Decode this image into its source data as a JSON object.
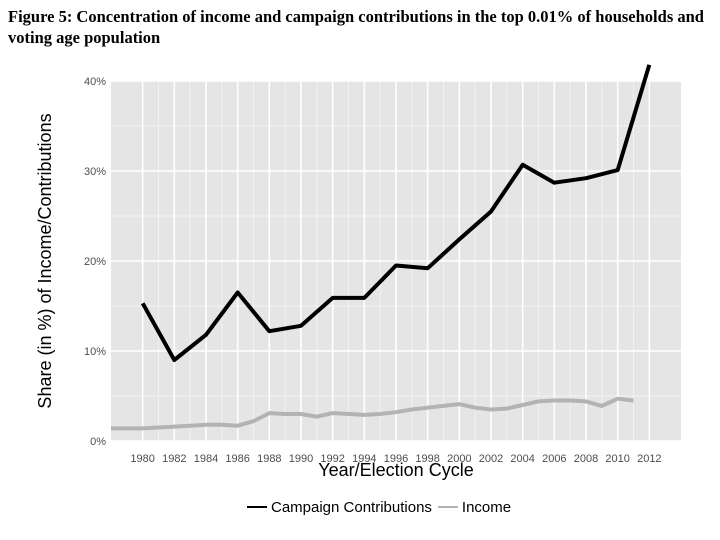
{
  "caption": "Figure 5:  Concentration of income and campaign contributions in the top 0.01% of households and voting age population",
  "chart_data": {
    "type": "line",
    "xlabel": "Year/Election Cycle",
    "ylabel": "Share (in %) of Income/Contributions",
    "xlim": [
      1978,
      2014
    ],
    "ylim": [
      0,
      40
    ],
    "x_ticks": [
      1980,
      1982,
      1984,
      1986,
      1988,
      1990,
      1992,
      1994,
      1996,
      1998,
      2000,
      2002,
      2004,
      2006,
      2008,
      2010,
      2012
    ],
    "x_tick_labels": [
      "1980",
      "1982",
      "1984",
      "1986",
      "1988",
      "1990",
      "1992",
      "1994",
      "1996",
      "1998",
      "2000",
      "2002",
      "2004",
      "2006",
      "2008",
      "2010",
      "2012"
    ],
    "y_ticks": [
      0,
      10,
      20,
      30,
      40
    ],
    "y_tick_labels": [
      "0%",
      "10%",
      "20%",
      "30%",
      "40%"
    ],
    "grid": true,
    "legend_position": "bottom",
    "series": [
      {
        "name": "Campaign Contributions",
        "color": "#000000",
        "x": [
          1980,
          1982,
          1984,
          1986,
          1988,
          1990,
          1992,
          1994,
          1996,
          1998,
          2000,
          2002,
          2004,
          2006,
          2008,
          2010,
          2012
        ],
        "y": [
          15.3,
          9.0,
          11.8,
          16.5,
          12.2,
          12.8,
          15.9,
          15.9,
          19.5,
          19.2,
          22.4,
          25.5,
          30.7,
          28.7,
          29.2,
          30.1,
          41.8
        ]
      },
      {
        "name": "Income",
        "color": "#b3b3b3",
        "x": [
          1978,
          1979,
          1980,
          1981,
          1982,
          1983,
          1984,
          1985,
          1986,
          1987,
          1988,
          1989,
          1990,
          1991,
          1992,
          1993,
          1994,
          1995,
          1996,
          1997,
          1998,
          1999,
          2000,
          2001,
          2002,
          2003,
          2004,
          2005,
          2006,
          2007,
          2008,
          2009,
          2010,
          2011
        ],
        "y": [
          1.4,
          1.4,
          1.4,
          1.5,
          1.6,
          1.7,
          1.8,
          1.8,
          1.7,
          2.2,
          3.1,
          3.0,
          3.0,
          2.7,
          3.1,
          3.0,
          2.9,
          3.0,
          3.2,
          3.5,
          3.7,
          3.9,
          4.1,
          3.7,
          3.5,
          3.6,
          4.0,
          4.4,
          4.5,
          4.5,
          4.4,
          3.9,
          4.7,
          4.5
        ]
      }
    ]
  }
}
